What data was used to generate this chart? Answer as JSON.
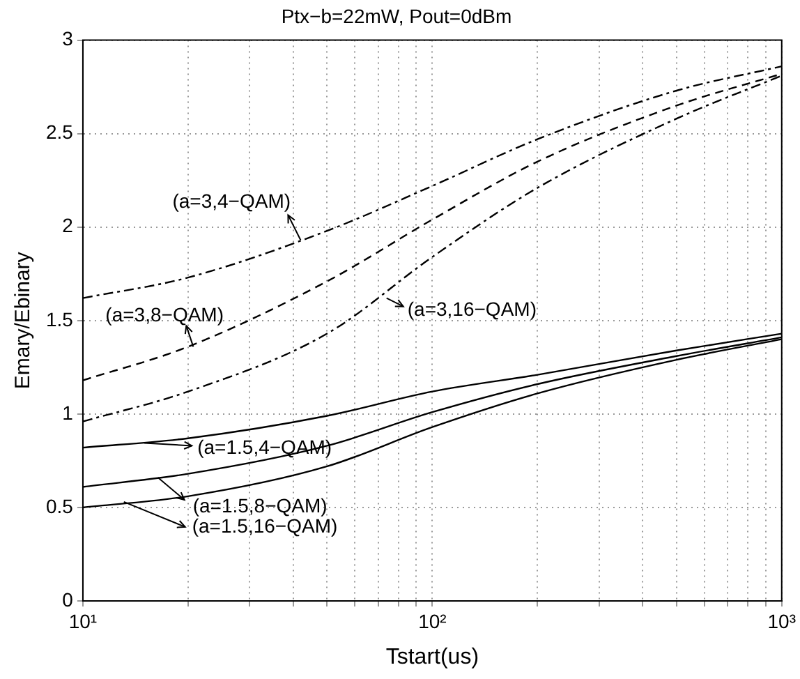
{
  "chart_data": {
    "type": "line",
    "title": "Ptx−b=22mW, Pout=0dBm",
    "xlabel": "Tstart(us)",
    "ylabel": "Emary/Ebinary",
    "log": "x",
    "grid": true,
    "legend": false,
    "marker": "none",
    "xlim": [
      10,
      1000
    ],
    "ylim": [
      0,
      3
    ],
    "xticks": [
      {
        "value": 10,
        "label": "10¹"
      },
      {
        "value": 20,
        "label": null
      },
      {
        "value": 30,
        "label": null
      },
      {
        "value": 40,
        "label": null
      },
      {
        "value": 50,
        "label": null
      },
      {
        "value": 60,
        "label": null
      },
      {
        "value": 70,
        "label": null
      },
      {
        "value": 80,
        "label": null
      },
      {
        "value": 90,
        "label": null
      },
      {
        "value": 100,
        "label": "10²"
      },
      {
        "value": 200,
        "label": null
      },
      {
        "value": 300,
        "label": null
      },
      {
        "value": 400,
        "label": null
      },
      {
        "value": 500,
        "label": null
      },
      {
        "value": 600,
        "label": null
      },
      {
        "value": 700,
        "label": null
      },
      {
        "value": 800,
        "label": null
      },
      {
        "value": 900,
        "label": null
      },
      {
        "value": 1000,
        "label": "10³"
      }
    ],
    "yticks": [
      0,
      0.5,
      1,
      1.5,
      2,
      2.5,
      3
    ],
    "x": [
      10,
      20,
      50,
      100,
      200,
      500,
      1000
    ],
    "series": [
      {
        "color": "#000000",
        "line_style": "dashdot",
        "values": [
          1.62,
          1.73,
          1.98,
          2.22,
          2.47,
          2.73,
          2.86
        ]
      },
      {
        "color": "#000000",
        "line_style": "dashed",
        "values": [
          1.18,
          1.36,
          1.71,
          2.04,
          2.35,
          2.65,
          2.82
        ]
      },
      {
        "color": "#000000",
        "line_style": "dashdot",
        "values": [
          0.96,
          1.12,
          1.43,
          1.84,
          2.21,
          2.58,
          2.81
        ]
      },
      {
        "color": "#000000",
        "line_style": "solid",
        "values": [
          0.82,
          0.87,
          0.99,
          1.12,
          1.21,
          1.34,
          1.43
        ]
      },
      {
        "color": "#000000",
        "line_style": "solid",
        "values": [
          0.61,
          0.68,
          0.83,
          1.01,
          1.16,
          1.31,
          1.41
        ]
      },
      {
        "color": "#000000",
        "line_style": "solid",
        "values": [
          0.5,
          0.56,
          0.72,
          0.93,
          1.11,
          1.29,
          1.4
        ]
      }
    ],
    "annotations": [
      {
        "text": "(a=3,4−QAM)",
        "x": 42,
        "y": 1.93
      },
      {
        "text": "(a=3,8−QAM)",
        "x": 20.7,
        "y": 1.36
      },
      {
        "text": "(a=3,16−QAM)",
        "x": 74,
        "y": 1.62
      },
      {
        "text": "(a=1.5,4−QAM)",
        "x": 15,
        "y": 0.845
      },
      {
        "text": "(a=1.5,8−QAM)",
        "x": 16.4,
        "y": 0.66
      },
      {
        "text": "(a=1.5,16−QAM)",
        "x": 13.1,
        "y": 0.53
      }
    ]
  }
}
